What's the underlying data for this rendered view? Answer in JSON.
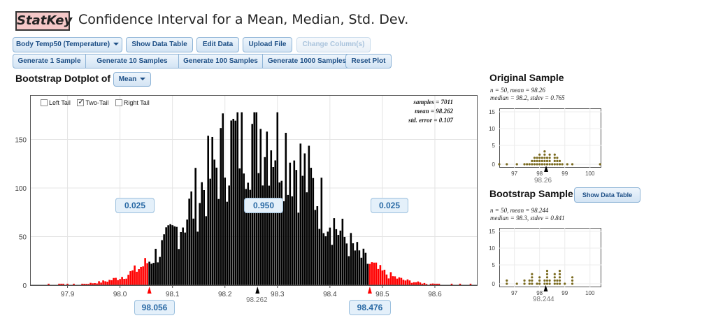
{
  "header": {
    "logo": "StatKey",
    "title": "Confidence Interval for a Mean, Median, Std. Dev."
  },
  "toolbar": {
    "dataset": "Body Temp50 (Temperature)",
    "show_data_table": "Show Data Table",
    "edit_data": "Edit Data",
    "upload_file": "Upload File",
    "change_columns": "Change Column(s)"
  },
  "generate": {
    "one": "Generate 1 Sample",
    "ten": "Generate 10 Samples",
    "hundred": "Generate 100 Samples",
    "thousand": "Generate 1000 Samples",
    "reset": "Reset Plot"
  },
  "dotplot": {
    "label": "Bootstrap Dotplot of",
    "statistic": "Mean",
    "left_tail": "Left Tail",
    "two_tail": "Two-Tail",
    "right_tail": "Right Tail",
    "samples": "samples = 7011",
    "mean": "mean = 98.262",
    "std_error": "std. error = 0.107",
    "left_prop": "0.025",
    "middle_prop": "0.950",
    "right_prop": "0.025",
    "lower_bound": "98.056",
    "upper_bound": "98.476",
    "center_label": "98.262"
  },
  "chart_data": {
    "type": "bar",
    "x_ticks": [
      "97.9",
      "98.0",
      "98.1",
      "98.2",
      "98.3",
      "98.4",
      "98.5",
      "98.6"
    ],
    "y_ticks": [
      "0",
      "50",
      "100",
      "150"
    ],
    "xlim": [
      97.83,
      98.68
    ],
    "ylim": [
      0,
      195
    ],
    "bootstrap_mean": 98.262,
    "interval": [
      98.056,
      98.476
    ],
    "bin_width": 0.004,
    "colors": {
      "inside": "#000000",
      "tail": "#ff0000"
    }
  },
  "original": {
    "title": "Original Sample",
    "line1": "n = 50, mean = 98.26",
    "line2": "median = 98.2, stdev = 0.765",
    "y_ticks": [
      "15",
      "10",
      "5",
      "0"
    ],
    "x_ticks": [
      "97",
      "98",
      "99",
      "100"
    ],
    "mean_label": "98.26"
  },
  "bootstrap": {
    "title": "Bootstrap Sample",
    "show_table": "Show Data Table",
    "line1": "n = 50, mean = 98.244",
    "line2": "median = 98.3, stdev = 0.841",
    "y_ticks": [
      "15",
      "10",
      "5",
      "0"
    ],
    "x_ticks": [
      "97",
      "98",
      "99",
      "100"
    ],
    "mean_label": "98.244"
  }
}
